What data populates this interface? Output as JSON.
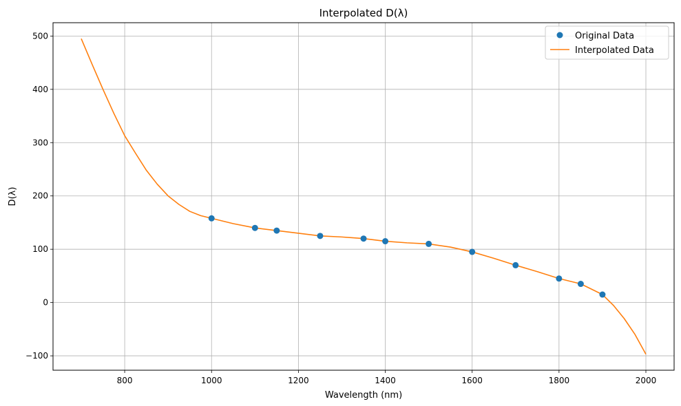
{
  "chart_data": {
    "type": "line",
    "title": "Interpolated D(λ)",
    "xlabel": "Wavelength (nm)",
    "ylabel": "D(λ)",
    "xlim": [
      635,
      2065
    ],
    "ylim": [
      -127,
      525
    ],
    "xticks": [
      800,
      1000,
      1200,
      1400,
      1600,
      1800,
      2000
    ],
    "yticks": [
      -100,
      0,
      100,
      200,
      300,
      400,
      500
    ],
    "xtick_labels": [
      "800",
      "1000",
      "1200",
      "1400",
      "1600",
      "1800",
      "2000"
    ],
    "ytick_labels": [
      "−100",
      "0",
      "100",
      "200",
      "300",
      "400",
      "500"
    ],
    "grid": true,
    "legend_position": "upper right",
    "series": [
      {
        "name": "Original Data",
        "kind": "scatter",
        "color": "#1f77b4",
        "x": [
          1000,
          1100,
          1150,
          1250,
          1350,
          1400,
          1500,
          1600,
          1700,
          1800,
          1850,
          1900
        ],
        "y": [
          158,
          140,
          135,
          125,
          120,
          115,
          110,
          95,
          70,
          45,
          35,
          15
        ]
      },
      {
        "name": "Interpolated Data",
        "kind": "line",
        "color": "#ff7f0e",
        "x": [
          700,
          725,
          750,
          775,
          800,
          825,
          850,
          875,
          900,
          925,
          950,
          975,
          1000,
          1050,
          1100,
          1150,
          1200,
          1250,
          1300,
          1350,
          1400,
          1450,
          1500,
          1550,
          1600,
          1650,
          1700,
          1750,
          1800,
          1850,
          1900,
          1925,
          1950,
          1975,
          2000
        ],
        "y": [
          495,
          447,
          400,
          355,
          313,
          280,
          248,
          222,
          200,
          184,
          171,
          163,
          158,
          148,
          140,
          135,
          130,
          125,
          123,
          120,
          115,
          112,
          110,
          104,
          95,
          83,
          70,
          58,
          45,
          35,
          15,
          -5,
          -30,
          -60,
          -97
        ]
      }
    ]
  }
}
